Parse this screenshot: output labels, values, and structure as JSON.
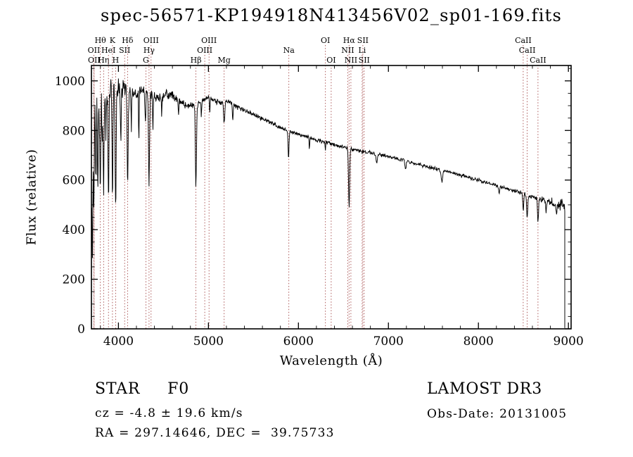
{
  "title": "spec-56571-KP194918N413456V02_sp01-169.fits",
  "chart_data": {
    "type": "line",
    "title": "spec-56571-KP194918N413456V02_sp01-169.fits",
    "xlabel": "Wavelength (Å)",
    "ylabel": "Flux (relative)",
    "xlim": [
      3700,
      9030
    ],
    "ylim": [
      0,
      1062
    ],
    "x_ticks": [
      4000,
      5000,
      6000,
      7000,
      8000,
      9000
    ],
    "y_ticks": [
      0,
      200,
      400,
      600,
      800,
      1000
    ],
    "x_minor_step": 200,
    "y_minor_step": 50,
    "spectrum_color": "#000000",
    "marker_color": "#993333",
    "spectral_lines": [
      {
        "label": "OII",
        "wl": 3727,
        "row": 2
      },
      {
        "label": "OII",
        "wl": 3730,
        "row": 3
      },
      {
        "label": "Hθ",
        "wl": 3799,
        "row": 1
      },
      {
        "label": "Hη",
        "wl": 3835,
        "row": 3
      },
      {
        "label": "HeI",
        "wl": 3889,
        "row": 2
      },
      {
        "label": "K",
        "wl": 3934,
        "row": 1
      },
      {
        "label": "H",
        "wl": 3969,
        "row": 3
      },
      {
        "label": "SII",
        "wl": 4069,
        "row": 2
      },
      {
        "label": "Hδ",
        "wl": 4102,
        "row": 1
      },
      {
        "label": "G",
        "wl": 4305,
        "row": 3
      },
      {
        "label": "Hγ",
        "wl": 4340,
        "row": 2
      },
      {
        "label": "OIII",
        "wl": 4363,
        "row": 1
      },
      {
        "label": "Hβ",
        "wl": 4861,
        "row": 3
      },
      {
        "label": "OIII",
        "wl": 4959,
        "row": 2
      },
      {
        "label": "OIII",
        "wl": 5007,
        "row": 1
      },
      {
        "label": "Mg",
        "wl": 5175,
        "row": 3
      },
      {
        "label": "Na",
        "wl": 5894,
        "row": 2
      },
      {
        "label": "OI",
        "wl": 6300,
        "row": 1
      },
      {
        "label": "OI",
        "wl": 6364,
        "row": 3
      },
      {
        "label": "NII",
        "wl": 6548,
        "row": 2
      },
      {
        "label": "Hα",
        "wl": 6563,
        "row": 1
      },
      {
        "label": "NII",
        "wl": 6583,
        "row": 3
      },
      {
        "label": "Li",
        "wl": 6708,
        "row": 2
      },
      {
        "label": "SII",
        "wl": 6716,
        "row": 1
      },
      {
        "label": "SII",
        "wl": 6731,
        "row": 3
      },
      {
        "label": "CaII",
        "wl": 8498,
        "row": 1
      },
      {
        "label": "CaII",
        "wl": 8542,
        "row": 2
      },
      {
        "label": "CaII",
        "wl": 8662,
        "row": 3
      }
    ],
    "continuum": [
      [
        3700,
        380
      ],
      [
        3720,
        700
      ],
      [
        3750,
        880
      ],
      [
        3790,
        905
      ],
      [
        3840,
        935
      ],
      [
        3890,
        955
      ],
      [
        3940,
        990
      ],
      [
        3990,
        980
      ],
      [
        4040,
        958
      ],
      [
        4090,
        968
      ],
      [
        4140,
        942
      ],
      [
        4190,
        948
      ],
      [
        4240,
        952
      ],
      [
        4290,
        960
      ],
      [
        4340,
        948
      ],
      [
        4390,
        932
      ],
      [
        4440,
        936
      ],
      [
        4490,
        940
      ],
      [
        4540,
        944
      ],
      [
        4590,
        948
      ],
      [
        4640,
        930
      ],
      [
        4690,
        915
      ],
      [
        4740,
        905
      ],
      [
        4790,
        900
      ],
      [
        4840,
        902
      ],
      [
        4890,
        908
      ],
      [
        4940,
        922
      ],
      [
        4990,
        934
      ],
      [
        5040,
        926
      ],
      [
        5090,
        918
      ],
      [
        5140,
        910
      ],
      [
        5190,
        922
      ],
      [
        5240,
        915
      ],
      [
        5290,
        902
      ],
      [
        5340,
        892
      ],
      [
        5390,
        884
      ],
      [
        5440,
        876
      ],
      [
        5490,
        866
      ],
      [
        5540,
        858
      ],
      [
        5590,
        848
      ],
      [
        5640,
        840
      ],
      [
        5690,
        832
      ],
      [
        5740,
        823
      ],
      [
        5790,
        813
      ],
      [
        5840,
        807
      ],
      [
        5890,
        798
      ],
      [
        5940,
        792
      ],
      [
        5990,
        788
      ],
      [
        6040,
        782
      ],
      [
        6090,
        776
      ],
      [
        6140,
        769
      ],
      [
        6190,
        763
      ],
      [
        6240,
        758
      ],
      [
        6290,
        753
      ],
      [
        6340,
        748
      ],
      [
        6390,
        743
      ],
      [
        6440,
        738
      ],
      [
        6490,
        733
      ],
      [
        6540,
        728
      ],
      [
        6590,
        724
      ],
      [
        6640,
        720
      ],
      [
        6690,
        717
      ],
      [
        6740,
        713
      ],
      [
        6790,
        710
      ],
      [
        6840,
        707
      ],
      [
        6890,
        703
      ],
      [
        6940,
        699
      ],
      [
        6990,
        695
      ],
      [
        7090,
        687
      ],
      [
        7190,
        678
      ],
      [
        7290,
        668
      ],
      [
        7390,
        658
      ],
      [
        7490,
        648
      ],
      [
        7590,
        640
      ],
      [
        7690,
        631
      ],
      [
        7790,
        621
      ],
      [
        7890,
        611
      ],
      [
        7990,
        601
      ],
      [
        8090,
        590
      ],
      [
        8190,
        579
      ],
      [
        8290,
        568
      ],
      [
        8390,
        558
      ],
      [
        8490,
        547
      ],
      [
        8590,
        534
      ],
      [
        8690,
        522
      ],
      [
        8790,
        510
      ],
      [
        8890,
        506
      ],
      [
        8960,
        492
      ]
    ],
    "absorption_lines": [
      [
        3712,
        240,
        4
      ],
      [
        3727,
        230,
        4
      ],
      [
        3750,
        300,
        4
      ],
      [
        3771,
        330,
        4
      ],
      [
        3798,
        380,
        5
      ],
      [
        3819,
        200,
        3
      ],
      [
        3835,
        400,
        5
      ],
      [
        3860,
        170,
        3
      ],
      [
        3889,
        420,
        5
      ],
      [
        3934,
        450,
        5
      ],
      [
        3969,
        460,
        6
      ],
      [
        4026,
        190,
        4
      ],
      [
        4102,
        370,
        6
      ],
      [
        4144,
        140,
        3
      ],
      [
        4227,
        210,
        3
      ],
      [
        4300,
        110,
        5
      ],
      [
        4340,
        360,
        6
      ],
      [
        4383,
        140,
        3
      ],
      [
        4481,
        100,
        3
      ],
      [
        4668,
        70,
        4
      ],
      [
        4861,
        330,
        6
      ],
      [
        4921,
        70,
        3
      ],
      [
        5015,
        60,
        3
      ],
      [
        5175,
        85,
        7
      ],
      [
        5270,
        65,
        4
      ],
      [
        5890,
        115,
        5
      ],
      [
        6122,
        45,
        3
      ],
      [
        6300,
        35,
        3
      ],
      [
        6563,
        235,
        6
      ],
      [
        6870,
        40,
        6
      ],
      [
        7190,
        35,
        6
      ],
      [
        7594,
        48,
        8
      ],
      [
        8230,
        35,
        5
      ],
      [
        8498,
        70,
        5
      ],
      [
        8542,
        95,
        6
      ],
      [
        8662,
        85,
        6
      ],
      [
        8752,
        55,
        4
      ],
      [
        8865,
        45,
        4
      ]
    ],
    "noise": {
      "seed": 20131005,
      "base": 8,
      "blue_amp": 90,
      "blue_scale": 450,
      "red_start": 8550,
      "red_amp": 26
    },
    "spectrum_start": 3700,
    "spectrum_end": 8960,
    "edge_flux": 130,
    "sample_step": 4
  },
  "annotations": {
    "class_label": "STAR     F0",
    "survey": "LAMOST DR3",
    "cz": "cz = -4.8 ± 19.6 km/s",
    "obs_date": "Obs-Date: 20131005",
    "radec": "RA = 297.14646, DEC =  39.75733"
  }
}
